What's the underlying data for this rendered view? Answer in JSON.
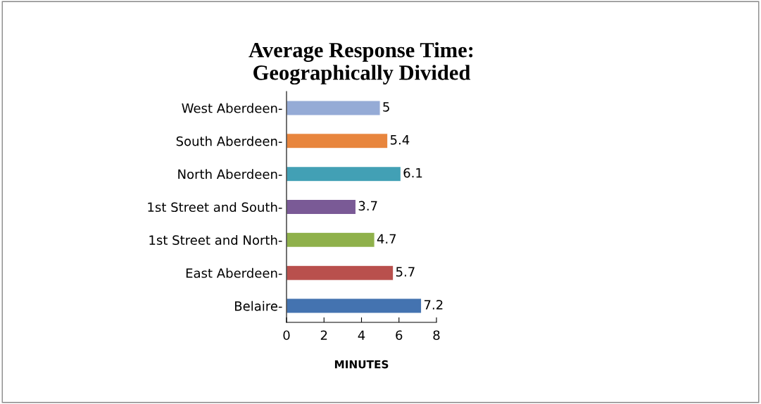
{
  "chart_data": {
    "type": "bar",
    "orientation": "horizontal",
    "title": "Average Response Time:\nGeographically Divided",
    "xlabel": "MINUTES",
    "categories": [
      "West Aberdeen-",
      "South Aberdeen-",
      "North Aberdeen-",
      "1st Street and South-",
      "1st Street and North-",
      "East Aberdeen-",
      "Belaire-"
    ],
    "values": [
      5,
      5.4,
      6.1,
      3.7,
      4.7,
      5.7,
      7.2
    ],
    "colors": [
      "#95abd6",
      "#e8853d",
      "#42a0b5",
      "#7a5a96",
      "#8fb14b",
      "#b9504d",
      "#4473b0"
    ],
    "xlim": [
      0,
      8
    ],
    "xticks": [
      0,
      2,
      4,
      6,
      8
    ],
    "data_labels": true,
    "grid": false,
    "legend": false
  }
}
